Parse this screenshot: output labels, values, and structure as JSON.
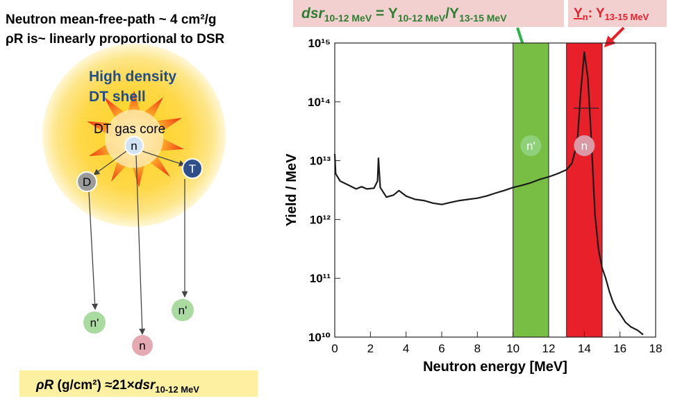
{
  "slide": {
    "notes": [
      "Neutron mean-free-path ~ 4 cm²/g",
      "ρR is~ linearly proportional to DSR"
    ],
    "header_formula": [
      "dsr",
      "10-12 MeV",
      " = Y",
      "10-12 MeV",
      "/Y",
      "13-15 MeV"
    ],
    "peak_formula": [
      "Y",
      "n",
      ": Y",
      "13-15 MeV"
    ],
    "bottom_formula": [
      "ρR",
      " (g/cm²) ≈21×",
      "dsr",
      "10-12 MeV"
    ]
  },
  "diagram": {
    "shell_label": [
      "High density",
      "DT shell"
    ],
    "core_label": "DT gas core",
    "nodes": [
      {
        "label": "n"
      },
      {
        "label": "D"
      },
      {
        "label": "T"
      },
      {
        "label": "n'"
      },
      {
        "label": "n"
      },
      {
        "label": "n'"
      }
    ]
  },
  "chart_data": {
    "type": "line",
    "x_label": "Neutron energy [MeV]",
    "y_label": "Yield / MeV",
    "ylog": true,
    "color": "#1a1a1a",
    "x": [
      0,
      0.05,
      0.3,
      0.8,
      1.2,
      1.5,
      1.8,
      2.2,
      2.4,
      2.45,
      2.55,
      2.9,
      3.3,
      3.6,
      4,
      4.5,
      5,
      5.5,
      6,
      6.5,
      7,
      7.5,
      8,
      8.5,
      9,
      9.5,
      10,
      10.5,
      11,
      11.5,
      12,
      12.5,
      13,
      13.3,
      13.6,
      13.8,
      14,
      14.2,
      14.4,
      14.6,
      14.8,
      15,
      15.2,
      15.4,
      15.6,
      15.8,
      16,
      16.3,
      16.6,
      17,
      17.3
    ],
    "values": [
      13000000000000.0,
      6000000000000.0,
      4500000000000.0,
      3800000000000.0,
      3300000000000.0,
      3600000000000.0,
      3300000000000.0,
      3400000000000.0,
      4500000000000.0,
      11000000000000.0,
      3500000000000.0,
      2400000000000.0,
      2600000000000.0,
      3100000000000.0,
      2500000000000.0,
      2200000000000.0,
      2100000000000.0,
      1900000000000.0,
      1800000000000.0,
      1950000000000.0,
      2100000000000.0,
      2200000000000.0,
      2300000000000.0,
      2500000000000.0,
      2800000000000.0,
      3100000000000.0,
      3500000000000.0,
      3800000000000.0,
      4200000000000.0,
      4800000000000.0,
      5300000000000.0,
      6000000000000.0,
      7000000000000.0,
      9000000000000.0,
      20000000000000.0,
      150000000000000.0,
      700000000000000.0,
      250000000000000.0,
      20000000000000.0,
      1200000000000.0,
      300000000000.0,
      150000000000.0,
      100000000000.0,
      60000000000.0,
      40000000000.0,
      30000000000.0,
      25000000000.0,
      18000000000.0,
      15000000000.0,
      13000000000.0,
      11000000000.0
    ],
    "xlim": [
      0,
      18
    ],
    "xticks": [
      0,
      2,
      4,
      6,
      8,
      10,
      12,
      14,
      16,
      18
    ],
    "ylim": [
      10000000000.0,
      1000000000000000.0
    ],
    "yticks": [
      {
        "value": 10000000000.0,
        "label": "10¹⁰"
      },
      {
        "value": 100000000000.0,
        "label": "10¹¹"
      },
      {
        "value": 1000000000000.0,
        "label": "10¹²"
      },
      {
        "value": 10000000000000.0,
        "label": "10¹³"
      },
      {
        "value": 100000000000000.0,
        "label": "10¹⁴"
      },
      {
        "value": 1000000000000000.0,
        "label": "10¹⁵"
      }
    ],
    "bands": [
      {
        "xlim": [
          10,
          12
        ],
        "color": "#78be44",
        "label": "n'",
        "label_color": "#8fd07a"
      },
      {
        "xlim": [
          13,
          15
        ],
        "color": "#e8202a",
        "label": "n",
        "label_color": "#d99aa6"
      }
    ]
  }
}
